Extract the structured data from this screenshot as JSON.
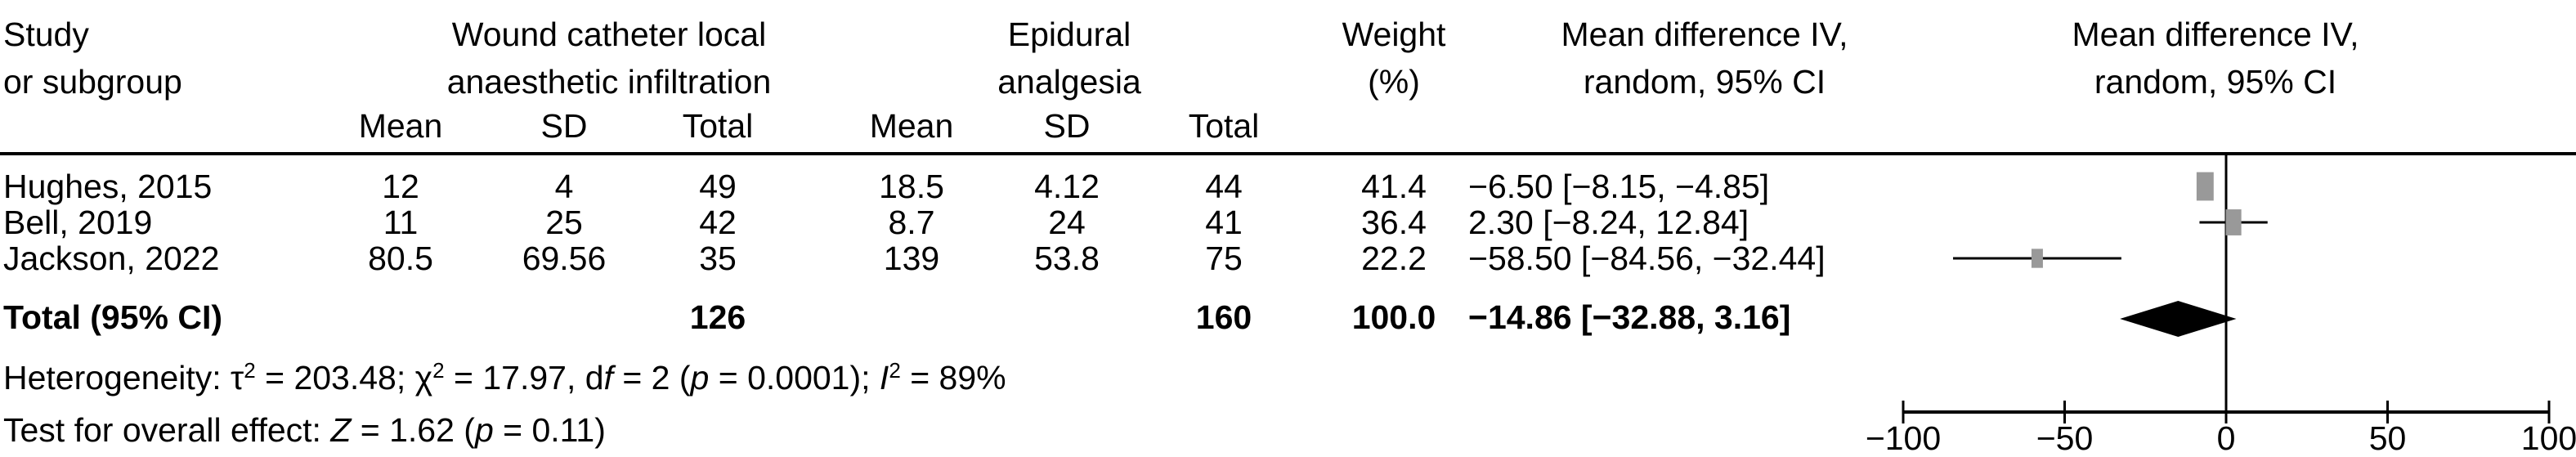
{
  "chart_data": {
    "type": "forest",
    "headers": {
      "study": [
        "Study",
        "or subgroup"
      ],
      "group1": [
        "Wound catheter local",
        "anaesthetic infiltration"
      ],
      "group2": [
        "Epidural",
        "analgesia"
      ],
      "weight": [
        "Weight",
        "(%)"
      ],
      "md_text": [
        "Mean difference IV,",
        "random, 95% CI"
      ],
      "md_plot": [
        "Mean difference IV,",
        "random, 95% CI"
      ],
      "sub": [
        "Mean",
        "SD",
        "Total",
        "Mean",
        "SD",
        "Total"
      ]
    },
    "studies": [
      {
        "name": "Hughes, 2015",
        "mean1": "12",
        "sd1": "4",
        "total1": "49",
        "mean2": "18.5",
        "sd2": "4.12",
        "total2": "44",
        "weight": "41.4",
        "ci_text": "−6.50 [−8.15, −4.85]",
        "md": -6.5,
        "lo": -8.15,
        "hi": -4.85,
        "w": 41.4
      },
      {
        "name": "Bell, 2019",
        "mean1": "11",
        "sd1": "25",
        "total1": "42",
        "mean2": "8.7",
        "sd2": "24",
        "total2": "41",
        "weight": "36.4",
        "ci_text": "2.30 [−8.24, 12.84]",
        "md": 2.3,
        "lo": -8.24,
        "hi": 12.84,
        "w": 36.4
      },
      {
        "name": "Jackson, 2022",
        "mean1": "80.5",
        "sd1": "69.56",
        "total1": "35",
        "mean2": "139",
        "sd2": "53.8",
        "total2": "75",
        "weight": "22.2",
        "ci_text": "−58.50 [−84.56, −32.44]",
        "md": -58.5,
        "lo": -84.56,
        "hi": -32.44,
        "w": 22.2
      }
    ],
    "total": {
      "name": "Total (95% CI)",
      "total1": "126",
      "total2": "160",
      "weight": "100.0",
      "ci_text": "−14.86 [−32.88, 3.16]",
      "md": -14.86,
      "lo": -32.88,
      "hi": 3.16
    },
    "heterogeneity": {
      "prefix": "Heterogeneity: τ",
      "tau2": " = 203.48; χ",
      "chi2": " = 17.97, d",
      "df_f": "f",
      "df": " = 2 (",
      "p1": "p",
      "p1v": " = 0.0001); ",
      "I": "I",
      "I2": " = 89%"
    },
    "overall": {
      "prefix": "Test for overall effect: ",
      "Z": "Z",
      "zv": " = 1.62 (",
      "p": "p",
      "pv": " = 0.11)"
    },
    "axis": {
      "min": -100,
      "max": 100,
      "ticks": [
        -100,
        -50,
        0,
        50,
        100
      ],
      "tick_labels": [
        "−100",
        "−50",
        "0",
        "50",
        "100"
      ]
    },
    "colors": {
      "square": "#999999",
      "line": "#000000"
    }
  }
}
